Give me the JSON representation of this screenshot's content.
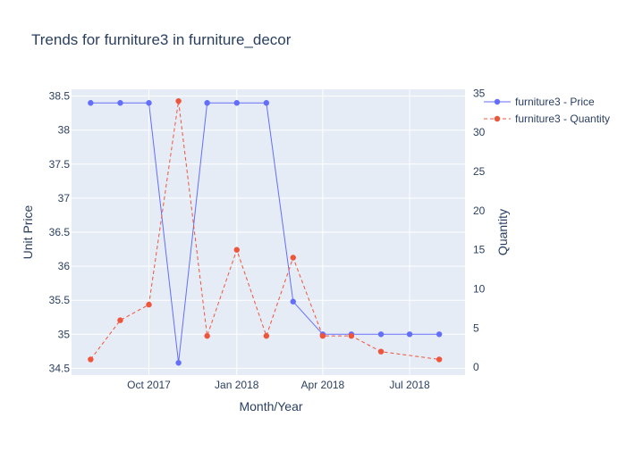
{
  "chart_data": {
    "type": "line",
    "title": "Trends for furniture3 in furniture_decor",
    "xlabel": "Month/Year",
    "ylabel": "Unit Price",
    "y2label": "Quantity",
    "x": [
      "2017-08",
      "2017-09",
      "2017-10",
      "2017-11",
      "2017-12",
      "2018-01",
      "2018-02",
      "2018-03",
      "2018-04",
      "2018-05",
      "2018-06",
      "2018-07",
      "2018-08"
    ],
    "x_ticks": [
      {
        "date": "2017-10",
        "label": "Oct 2017"
      },
      {
        "date": "2018-01",
        "label": "Jan 2018"
      },
      {
        "date": "2018-04",
        "label": "Apr 2018"
      },
      {
        "date": "2018-07",
        "label": "Jul 2018"
      }
    ],
    "xlim": [
      "2017-07-12",
      "2018-08-28"
    ],
    "ylim": [
      34.4,
      38.6
    ],
    "y_ticks": [
      "34.5",
      "35",
      "35.5",
      "36",
      "36.5",
      "37",
      "37.5",
      "38",
      "38.5"
    ],
    "y2lim": [
      -1,
      35.5
    ],
    "y2_ticks": [
      "0",
      "5",
      "10",
      "15",
      "20",
      "25",
      "30",
      "35"
    ],
    "grid": true,
    "legend_position": "top-right",
    "series": [
      {
        "name": "furniture3 - Price",
        "axis": "y",
        "color": "#636efa",
        "dash": "solid",
        "values": [
          38.4,
          38.4,
          38.4,
          34.58,
          38.4,
          38.4,
          38.4,
          35.48,
          35.0,
          35.0,
          35.0,
          35.0,
          35.0
        ]
      },
      {
        "name": "furniture3 - Quantity",
        "axis": "y2",
        "color": "#ef553b",
        "dash": "dash",
        "values": [
          1,
          6,
          8,
          34,
          4,
          15,
          4,
          14,
          4,
          4,
          2,
          null,
          1
        ]
      }
    ]
  },
  "colors": {
    "plot_bg": "#e5ecf6",
    "grid": "#ffffff",
    "text": "#2a3f5f"
  }
}
